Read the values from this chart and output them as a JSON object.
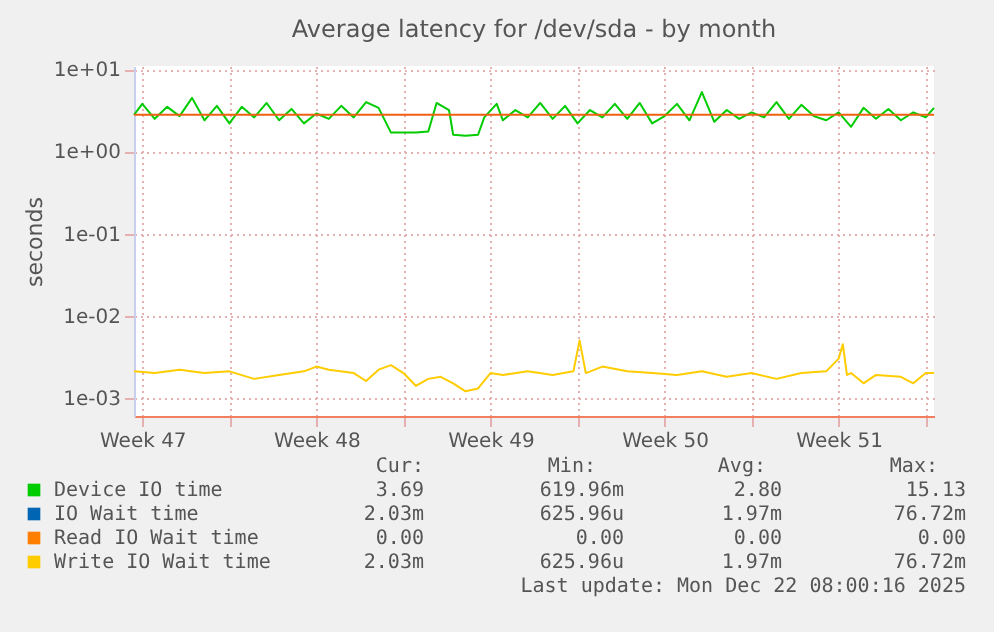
{
  "chart_data": {
    "type": "line",
    "title": "Average latency for /dev/sda - by month",
    "ylabel": "seconds",
    "log": true,
    "grid": true,
    "legend": "bottom",
    "line_style": "solid",
    "marker": "none",
    "xlim": [
      "2025-11-20T04:00",
      "2025-12-22T08:00"
    ],
    "xticks": [
      {
        "value": "2025-11-20T12:00",
        "label": "Week 47"
      },
      {
        "value": "2025-11-24",
        "label": null
      },
      {
        "value": "2025-11-27T12:00",
        "label": "Week 48"
      },
      {
        "value": "2025-12-01",
        "label": null
      },
      {
        "value": "2025-12-04T12:00",
        "label": "Week 49"
      },
      {
        "value": "2025-12-08",
        "label": null
      },
      {
        "value": "2025-12-11T12:00",
        "label": "Week 50"
      },
      {
        "value": "2025-12-15",
        "label": null
      },
      {
        "value": "2025-12-18T12:00",
        "label": "Week 51"
      },
      {
        "value": "2025-12-22",
        "label": null
      }
    ],
    "ylim": [
      0.0006,
      11
    ],
    "yticks": [
      {
        "value": 10,
        "label": "1e+01"
      },
      {
        "value": 1,
        "label": "1e+00"
      },
      {
        "value": 0.1,
        "label": "1e-01"
      },
      {
        "value": 0.01,
        "label": "1e-02"
      },
      {
        "value": 0.001,
        "label": "1e-03"
      }
    ],
    "ref_lines": [
      {
        "axis": "y",
        "value": 2.8,
        "color": "#f06010"
      }
    ],
    "series": [
      {
        "name": "Device IO time",
        "color": "#00cc00",
        "x": [
          "2025-11-20T04:00",
          "2025-11-20T12:00",
          "2025-11-21",
          "2025-11-21T12:00",
          "2025-11-22",
          "2025-11-22T12:00",
          "2025-11-23",
          "2025-11-23T12:00",
          "2025-11-24",
          "2025-11-24T12:00",
          "2025-11-25",
          "2025-11-25T12:00",
          "2025-11-26",
          "2025-11-26T12:00",
          "2025-11-27",
          "2025-11-27T12:00",
          "2025-11-28",
          "2025-11-28T12:00",
          "2025-11-29",
          "2025-11-29T12:00",
          "2025-11-30",
          "2025-11-30T12:00",
          "2025-12-01",
          "2025-12-01T12:00",
          "2025-12-02",
          "2025-12-02T08:00",
          "2025-12-02T20:00",
          "2025-12-03",
          "2025-12-03T12:00",
          "2025-12-04",
          "2025-12-04T06:00",
          "2025-12-04T18:00",
          "2025-12-05",
          "2025-12-05T12:00",
          "2025-12-06",
          "2025-12-06T12:00",
          "2025-12-07",
          "2025-12-07T12:00",
          "2025-12-08",
          "2025-12-08T12:00",
          "2025-12-09",
          "2025-12-09T12:00",
          "2025-12-10",
          "2025-12-10T12:00",
          "2025-12-11",
          "2025-12-11T12:00",
          "2025-12-12",
          "2025-12-12T12:00",
          "2025-12-13",
          "2025-12-13T12:00",
          "2025-12-14",
          "2025-12-14T12:00",
          "2025-12-15",
          "2025-12-15T12:00",
          "2025-12-16",
          "2025-12-16T12:00",
          "2025-12-17",
          "2025-12-17T12:00",
          "2025-12-18",
          "2025-12-18T12:00",
          "2025-12-19",
          "2025-12-19T12:00",
          "2025-12-20",
          "2025-12-20T12:00",
          "2025-12-21",
          "2025-12-21T12:00",
          "2025-12-22",
          "2025-12-22T08:00"
        ],
        "values": [
          2.8,
          3.8,
          2.5,
          3.5,
          2.7,
          4.5,
          2.4,
          3.6,
          2.2,
          3.5,
          2.6,
          3.9,
          2.4,
          3.3,
          2.2,
          2.9,
          2.5,
          3.6,
          2.6,
          4.0,
          3.4,
          1.7,
          1.7,
          1.7,
          1.75,
          3.9,
          3.2,
          1.6,
          1.55,
          1.6,
          2.6,
          3.8,
          2.4,
          3.2,
          2.6,
          3.9,
          2.5,
          3.6,
          2.2,
          3.2,
          2.6,
          3.8,
          2.5,
          3.9,
          2.2,
          2.7,
          3.8,
          2.4,
          5.3,
          2.3,
          3.2,
          2.5,
          3.0,
          2.6,
          4.0,
          2.5,
          3.7,
          2.7,
          2.4,
          3.0,
          2.0,
          3.4,
          2.5,
          3.3,
          2.4,
          3.0,
          2.6,
          3.4
        ]
      },
      {
        "name": "IO Wait time",
        "color": "#0066b3"
      },
      {
        "name": "Read IO Wait time",
        "color": "#ff8000"
      },
      {
        "name": "Write IO Wait time",
        "color": "#ffcc00",
        "x": [
          "2025-11-20T04:00",
          "2025-11-21",
          "2025-11-22",
          "2025-11-23",
          "2025-11-24",
          "2025-11-25",
          "2025-11-26",
          "2025-11-27",
          "2025-11-27T12:00",
          "2025-11-28",
          "2025-11-29",
          "2025-11-29T12:00",
          "2025-11-30",
          "2025-11-30T12:00",
          "2025-12-01",
          "2025-12-01T12:00",
          "2025-12-02",
          "2025-12-02T12:00",
          "2025-12-03",
          "2025-12-03T12:00",
          "2025-12-04",
          "2025-12-04T12:00",
          "2025-12-05",
          "2025-12-06",
          "2025-12-07",
          "2025-12-07T20:00",
          "2025-12-08T02:00",
          "2025-12-08T08:00",
          "2025-12-09",
          "2025-12-10",
          "2025-12-11",
          "2025-12-12",
          "2025-12-13",
          "2025-12-14",
          "2025-12-15",
          "2025-12-16",
          "2025-12-17",
          "2025-12-18",
          "2025-12-18T12:00",
          "2025-12-18T16:00",
          "2025-12-18T20:00",
          "2025-12-19",
          "2025-12-19T12:00",
          "2025-12-20",
          "2025-12-21",
          "2025-12-21T12:00",
          "2025-12-22",
          "2025-12-22T08:00"
        ],
        "values": [
          0.0021,
          0.002,
          0.0022,
          0.002,
          0.0021,
          0.0017,
          0.0019,
          0.0021,
          0.0024,
          0.0022,
          0.002,
          0.0016,
          0.0022,
          0.0025,
          0.002,
          0.0014,
          0.0017,
          0.0018,
          0.0015,
          0.0012,
          0.0013,
          0.002,
          0.0019,
          0.0021,
          0.0019,
          0.0021,
          0.005,
          0.002,
          0.0024,
          0.0021,
          0.002,
          0.0019,
          0.0021,
          0.0018,
          0.002,
          0.0017,
          0.002,
          0.0021,
          0.003,
          0.0045,
          0.0019,
          0.002,
          0.0015,
          0.0019,
          0.0018,
          0.0015,
          0.002,
          0.002
        ]
      }
    ],
    "annotations": [
      "Cur:",
      "Min:",
      "Avg:",
      "Max:",
      "3.69",
      "619.96m",
      "2.80",
      "15.13",
      "2.03m",
      "625.96u",
      "1.97m",
      "76.72m",
      "0.00",
      "0.00",
      "0.00",
      "0.00",
      "2.03m",
      "625.96u",
      "1.97m",
      "76.72m",
      "Last update:  Mon Dec 22 08:00:16 2025"
    ]
  }
}
